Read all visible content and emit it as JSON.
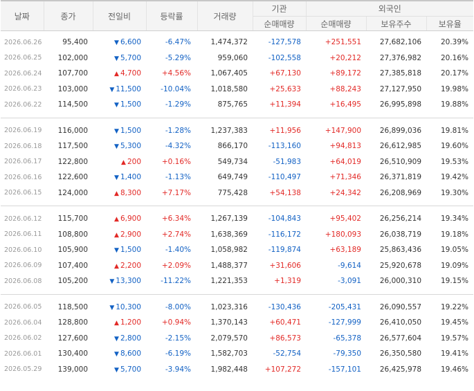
{
  "header": {
    "date": "날짜",
    "close": "종가",
    "change": "전일비",
    "rate": "등락률",
    "volume": "거래량",
    "institution": "기관",
    "foreign": "외국인",
    "inst_net": "순매매량",
    "for_net": "순매매량",
    "shares": "보유주수",
    "ratio": "보유율"
  },
  "colors": {
    "up": "#e22926",
    "down": "#1261c4"
  },
  "groups": [
    [
      {
        "date": "2026.06.26",
        "close": "95,400",
        "dir": "down",
        "chg": "6,600",
        "rate": "-6.47%",
        "vol": "1,474,372",
        "inst": "-127,578",
        "forn": "+251,551",
        "shares": "27,682,106",
        "ratio": "20.39%"
      },
      {
        "date": "2026.06.25",
        "close": "102,000",
        "dir": "down",
        "chg": "5,700",
        "rate": "-5.29%",
        "vol": "959,060",
        "inst": "-102,558",
        "forn": "+20,212",
        "shares": "27,376,982",
        "ratio": "20.16%"
      },
      {
        "date": "2026.06.24",
        "close": "107,700",
        "dir": "up",
        "chg": "4,700",
        "rate": "+4.56%",
        "vol": "1,067,405",
        "inst": "+67,130",
        "forn": "+89,172",
        "shares": "27,385,818",
        "ratio": "20.17%"
      },
      {
        "date": "2026.06.23",
        "close": "103,000",
        "dir": "down",
        "chg": "11,500",
        "rate": "-10.04%",
        "vol": "1,018,580",
        "inst": "+25,633",
        "forn": "+88,243",
        "shares": "27,127,950",
        "ratio": "19.98%"
      },
      {
        "date": "2026.06.22",
        "close": "114,500",
        "dir": "down",
        "chg": "1,500",
        "rate": "-1.29%",
        "vol": "875,765",
        "inst": "+11,394",
        "forn": "+16,495",
        "shares": "26,995,898",
        "ratio": "19.88%"
      }
    ],
    [
      {
        "date": "2026.06.19",
        "close": "116,000",
        "dir": "down",
        "chg": "1,500",
        "rate": "-1.28%",
        "vol": "1,237,383",
        "inst": "+11,956",
        "forn": "+147,900",
        "shares": "26,899,036",
        "ratio": "19.81%"
      },
      {
        "date": "2026.06.18",
        "close": "117,500",
        "dir": "down",
        "chg": "5,300",
        "rate": "-4.32%",
        "vol": "866,170",
        "inst": "-113,160",
        "forn": "+94,813",
        "shares": "26,612,985",
        "ratio": "19.60%"
      },
      {
        "date": "2026.06.17",
        "close": "122,800",
        "dir": "up",
        "chg": "200",
        "rate": "+0.16%",
        "vol": "549,734",
        "inst": "-51,983",
        "forn": "+64,019",
        "shares": "26,510,909",
        "ratio": "19.53%"
      },
      {
        "date": "2026.06.16",
        "close": "122,600",
        "dir": "down",
        "chg": "1,400",
        "rate": "-1.13%",
        "vol": "649,749",
        "inst": "-110,497",
        "forn": "+71,346",
        "shares": "26,371,819",
        "ratio": "19.42%"
      },
      {
        "date": "2026.06.15",
        "close": "124,000",
        "dir": "up",
        "chg": "8,300",
        "rate": "+7.17%",
        "vol": "775,428",
        "inst": "+54,138",
        "forn": "+24,342",
        "shares": "26,208,969",
        "ratio": "19.30%"
      }
    ],
    [
      {
        "date": "2026.06.12",
        "close": "115,700",
        "dir": "up",
        "chg": "6,900",
        "rate": "+6.34%",
        "vol": "1,267,139",
        "inst": "-104,843",
        "forn": "+95,402",
        "shares": "26,256,214",
        "ratio": "19.34%"
      },
      {
        "date": "2026.06.11",
        "close": "108,800",
        "dir": "up",
        "chg": "2,900",
        "rate": "+2.74%",
        "vol": "1,638,369",
        "inst": "-116,172",
        "forn": "+180,093",
        "shares": "26,038,719",
        "ratio": "19.18%"
      },
      {
        "date": "2026.06.10",
        "close": "105,900",
        "dir": "down",
        "chg": "1,500",
        "rate": "-1.40%",
        "vol": "1,058,982",
        "inst": "-119,874",
        "forn": "+63,189",
        "shares": "25,863,436",
        "ratio": "19.05%"
      },
      {
        "date": "2026.06.09",
        "close": "107,400",
        "dir": "up",
        "chg": "2,200",
        "rate": "+2.09%",
        "vol": "1,488,377",
        "inst": "+31,606",
        "forn": "-9,614",
        "shares": "25,920,678",
        "ratio": "19.09%"
      },
      {
        "date": "2026.06.08",
        "close": "105,200",
        "dir": "down",
        "chg": "13,300",
        "rate": "-11.22%",
        "vol": "1,221,353",
        "inst": "+1,319",
        "forn": "-3,091",
        "shares": "26,000,310",
        "ratio": "19.15%"
      }
    ],
    [
      {
        "date": "2026.06.05",
        "close": "118,500",
        "dir": "down",
        "chg": "10,300",
        "rate": "-8.00%",
        "vol": "1,023,316",
        "inst": "-130,436",
        "forn": "-205,431",
        "shares": "26,090,557",
        "ratio": "19.22%"
      },
      {
        "date": "2026.06.04",
        "close": "128,800",
        "dir": "up",
        "chg": "1,200",
        "rate": "+0.94%",
        "vol": "1,370,143",
        "inst": "+60,471",
        "forn": "-127,999",
        "shares": "26,410,050",
        "ratio": "19.45%"
      },
      {
        "date": "2026.06.02",
        "close": "127,600",
        "dir": "down",
        "chg": "2,800",
        "rate": "-2.15%",
        "vol": "2,079,570",
        "inst": "+86,573",
        "forn": "-65,378",
        "shares": "26,577,604",
        "ratio": "19.57%"
      },
      {
        "date": "2026.06.01",
        "close": "130,400",
        "dir": "down",
        "chg": "8,600",
        "rate": "-6.19%",
        "vol": "1,582,703",
        "inst": "-52,754",
        "forn": "-79,350",
        "shares": "26,350,580",
        "ratio": "19.41%"
      },
      {
        "date": "2026.05.29",
        "close": "139,000",
        "dir": "down",
        "chg": "5,700",
        "rate": "-3.94%",
        "vol": "1,982,448",
        "inst": "+107,272",
        "forn": "-157,101",
        "shares": "26,425,978",
        "ratio": "19.46%"
      }
    ]
  ]
}
